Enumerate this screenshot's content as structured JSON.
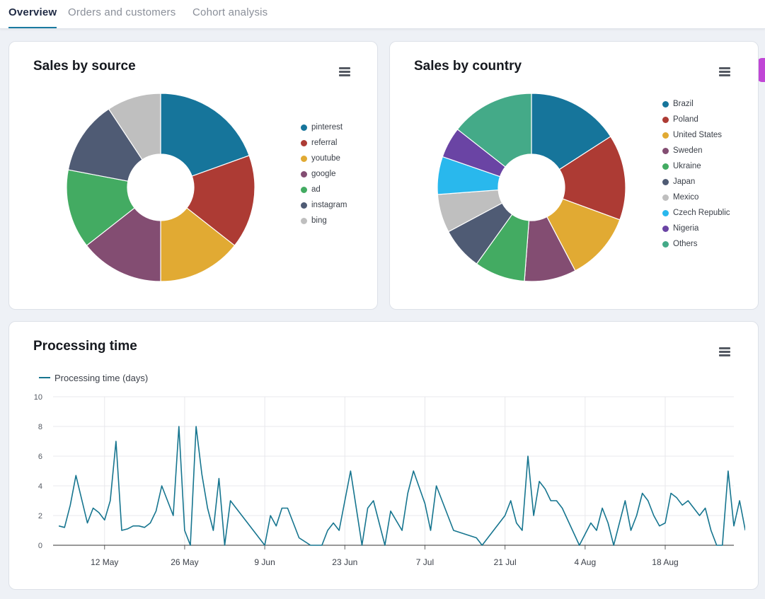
{
  "tabs": [
    {
      "label": "Overview"
    },
    {
      "label": "Orders and customers"
    },
    {
      "label": "Cohort analysis"
    }
  ],
  "colors": {
    "accent": "#1a7aa0",
    "line": "#16758f",
    "side_tab": "#c046d6"
  },
  "sales_by_source": {
    "title": "Sales by source",
    "menu_icon": "hamburger-menu-icon",
    "chart_data": {
      "type": "pie",
      "title": "Sales by source",
      "slices": [
        {
          "label": "pinterest",
          "value": 19.5,
          "color": "#16759b"
        },
        {
          "label": "referral",
          "value": 16.1,
          "color": "#ad3b34"
        },
        {
          "label": "youtube",
          "value": 14.4,
          "color": "#e1aa33"
        },
        {
          "label": "google",
          "value": 14.4,
          "color": "#834d72"
        },
        {
          "label": "ad",
          "value": 13.6,
          "color": "#43ab62"
        },
        {
          "label": "instagram",
          "value": 12.7,
          "color": "#4f5b74"
        },
        {
          "label": "bing",
          "value": 9.3,
          "color": "#bfbfbf"
        }
      ],
      "legend_position": "right"
    }
  },
  "sales_by_country": {
    "title": "Sales by country",
    "menu_icon": "hamburger-menu-icon",
    "chart_data": {
      "type": "pie",
      "title": "Sales by country",
      "slices": [
        {
          "label": "Brazil",
          "value": 15.9,
          "color": "#16759b"
        },
        {
          "label": "Poland",
          "value": 14.7,
          "color": "#ad3b34"
        },
        {
          "label": "United States",
          "value": 11.7,
          "color": "#e1aa33"
        },
        {
          "label": "Sweden",
          "value": 8.9,
          "color": "#834d72"
        },
        {
          "label": "Ukraine",
          "value": 8.7,
          "color": "#43ab62"
        },
        {
          "label": "Japan",
          "value": 7.3,
          "color": "#4f5b74"
        },
        {
          "label": "Mexico",
          "value": 6.6,
          "color": "#bfbfbf"
        },
        {
          "label": "Czech Republic",
          "value": 6.5,
          "color": "#29b8ed"
        },
        {
          "label": "Nigeria",
          "value": 5.3,
          "color": "#6a44a4"
        },
        {
          "label": "Others",
          "value": 14.4,
          "color": "#44aa88"
        }
      ],
      "legend_position": "right"
    }
  },
  "processing_time": {
    "title": "Processing time",
    "menu_icon": "hamburger-menu-icon",
    "chart_data": {
      "type": "line",
      "title": "Processing time",
      "xlabel": "",
      "ylabel": "",
      "ylim": [
        0,
        10
      ],
      "yticks": [
        0,
        2,
        4,
        6,
        8,
        10
      ],
      "grid": true,
      "legend_position": "top-left",
      "x_start": "2023-05-03",
      "x_end": "2023-08-30",
      "xticks": [
        {
          "label": "12 May",
          "date": "2023-05-12"
        },
        {
          "label": "26 May",
          "date": "2023-05-26"
        },
        {
          "label": "9 Jun",
          "date": "2023-06-09"
        },
        {
          "label": "23 Jun",
          "date": "2023-06-23"
        },
        {
          "label": "7 Jul",
          "date": "2023-07-07"
        },
        {
          "label": "21 Jul",
          "date": "2023-07-21"
        },
        {
          "label": "4 Aug",
          "date": "2023-08-04"
        },
        {
          "label": "18 Aug",
          "date": "2023-08-18"
        }
      ],
      "series": [
        {
          "name": "Processing time (days)",
          "color": "#16758f",
          "points": [
            [
              "2023-05-04",
              1.3
            ],
            [
              "2023-05-05",
              1.2
            ],
            [
              "2023-05-06",
              2.7
            ],
            [
              "2023-05-07",
              4.7
            ],
            [
              "2023-05-08",
              3.1
            ],
            [
              "2023-05-09",
              1.5
            ],
            [
              "2023-05-10",
              2.5
            ],
            [
              "2023-05-11",
              2.2
            ],
            [
              "2023-05-12",
              1.7
            ],
            [
              "2023-05-13",
              3.0
            ],
            [
              "2023-05-14",
              7.0
            ],
            [
              "2023-05-15",
              1.0
            ],
            [
              "2023-05-16",
              1.1
            ],
            [
              "2023-05-17",
              1.3
            ],
            [
              "2023-05-18",
              1.3
            ],
            [
              "2023-05-19",
              1.2
            ],
            [
              "2023-05-20",
              1.5
            ],
            [
              "2023-05-21",
              2.3
            ],
            [
              "2023-05-22",
              4.0
            ],
            [
              "2023-05-23",
              3.0
            ],
            [
              "2023-05-24",
              2.0
            ],
            [
              "2023-05-25",
              8.0
            ],
            [
              "2023-05-26",
              1.0
            ],
            [
              "2023-05-27",
              0.0
            ],
            [
              "2023-05-28",
              8.0
            ],
            [
              "2023-05-29",
              4.8
            ],
            [
              "2023-05-30",
              2.5
            ],
            [
              "2023-05-31",
              1.0
            ],
            [
              "2023-06-01",
              4.5
            ],
            [
              "2023-06-02",
              0.0
            ],
            [
              "2023-06-03",
              3.0
            ],
            [
              "2023-06-09",
              0.0
            ],
            [
              "2023-06-10",
              2.0
            ],
            [
              "2023-06-11",
              1.3
            ],
            [
              "2023-06-12",
              2.5
            ],
            [
              "2023-06-13",
              2.5
            ],
            [
              "2023-06-15",
              0.5
            ],
            [
              "2023-06-17",
              0.0
            ],
            [
              "2023-06-19",
              0.0
            ],
            [
              "2023-06-20",
              1.0
            ],
            [
              "2023-06-21",
              1.5
            ],
            [
              "2023-06-22",
              1.0
            ],
            [
              "2023-06-24",
              5.0
            ],
            [
              "2023-06-26",
              0.0
            ],
            [
              "2023-06-27",
              2.5
            ],
            [
              "2023-06-28",
              3.0
            ],
            [
              "2023-06-29",
              1.5
            ],
            [
              "2023-06-30",
              0.0
            ],
            [
              "2023-07-01",
              2.3
            ],
            [
              "2023-07-03",
              1.0
            ],
            [
              "2023-07-04",
              3.5
            ],
            [
              "2023-07-05",
              5.0
            ],
            [
              "2023-07-06",
              3.9
            ],
            [
              "2023-07-07",
              2.8
            ],
            [
              "2023-07-08",
              1.0
            ],
            [
              "2023-07-09",
              4.0
            ],
            [
              "2023-07-12",
              1.0
            ],
            [
              "2023-07-16",
              0.5
            ],
            [
              "2023-07-17",
              0.0
            ],
            [
              "2023-07-21",
              2.0
            ],
            [
              "2023-07-22",
              3.0
            ],
            [
              "2023-07-23",
              1.5
            ],
            [
              "2023-07-24",
              1.0
            ],
            [
              "2023-07-25",
              6.0
            ],
            [
              "2023-07-26",
              2.0
            ],
            [
              "2023-07-27",
              4.3
            ],
            [
              "2023-07-28",
              3.8
            ],
            [
              "2023-07-29",
              3.0
            ],
            [
              "2023-07-30",
              3.0
            ],
            [
              "2023-07-31",
              2.5
            ],
            [
              "2023-08-03",
              0.0
            ],
            [
              "2023-08-05",
              1.5
            ],
            [
              "2023-08-06",
              1.0
            ],
            [
              "2023-08-07",
              2.5
            ],
            [
              "2023-08-08",
              1.5
            ],
            [
              "2023-08-09",
              0.0
            ],
            [
              "2023-08-11",
              3.0
            ],
            [
              "2023-08-12",
              1.0
            ],
            [
              "2023-08-13",
              2.0
            ],
            [
              "2023-08-14",
              3.5
            ],
            [
              "2023-08-15",
              3.0
            ],
            [
              "2023-08-16",
              2.0
            ],
            [
              "2023-08-17",
              1.3
            ],
            [
              "2023-08-18",
              1.5
            ],
            [
              "2023-08-19",
              3.5
            ],
            [
              "2023-08-20",
              3.2
            ],
            [
              "2023-08-21",
              2.7
            ],
            [
              "2023-08-22",
              3.0
            ],
            [
              "2023-08-24",
              2.0
            ],
            [
              "2023-08-25",
              2.5
            ],
            [
              "2023-08-26",
              1.0
            ],
            [
              "2023-08-27",
              0.0
            ],
            [
              "2023-08-28",
              0.0
            ],
            [
              "2023-08-29",
              5.0
            ],
            [
              "2023-08-30",
              1.3
            ],
            [
              "2023-08-31",
              3.0
            ],
            [
              "2023-09-01",
              1.0
            ]
          ]
        }
      ]
    }
  }
}
